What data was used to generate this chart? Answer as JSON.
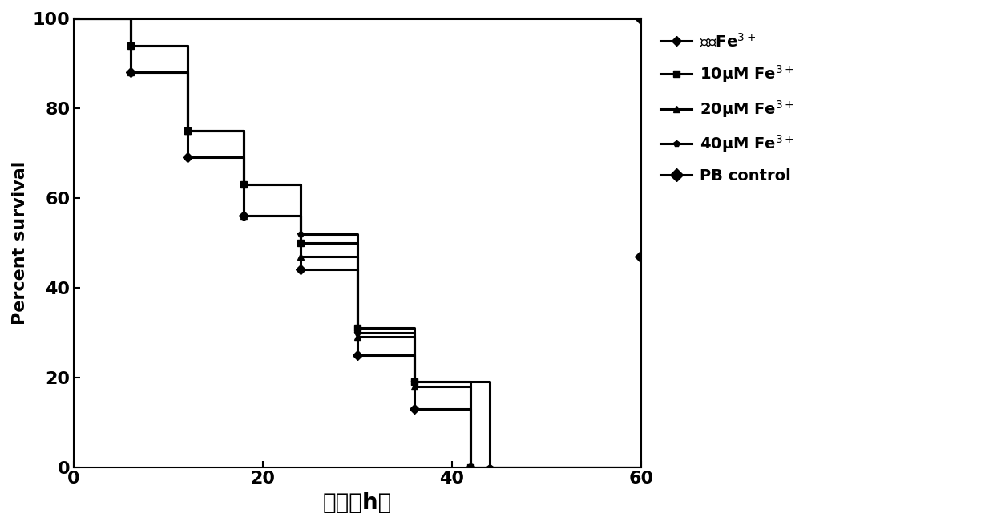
{
  "xlabel": "时间（h）",
  "ylabel": "Percent survival",
  "xlim": [
    0,
    60
  ],
  "ylim": [
    0,
    100
  ],
  "xticks": [
    0,
    20,
    40,
    60
  ],
  "yticks": [
    0,
    20,
    40,
    60,
    80,
    100
  ],
  "line_color": "#000000",
  "line_width": 2.2,
  "curves": {
    "no_fe": {
      "label": "不含Fe$^{3+}$",
      "marker": "D",
      "marker_size": 6,
      "x": [
        0,
        6,
        6,
        12,
        12,
        18,
        18,
        24,
        24,
        30,
        30,
        36,
        36,
        42,
        42,
        60
      ],
      "y": [
        100,
        100,
        88,
        88,
        69,
        69,
        56,
        56,
        44,
        44,
        25,
        25,
        13,
        13,
        0,
        0
      ]
    },
    "fe_10": {
      "label": "10μM Fe$^{3+}$",
      "marker": "s",
      "marker_size": 6,
      "x": [
        0,
        6,
        6,
        12,
        12,
        18,
        18,
        24,
        24,
        30,
        30,
        36,
        36,
        42,
        42,
        60
      ],
      "y": [
        100,
        100,
        94,
        94,
        75,
        75,
        63,
        63,
        50,
        50,
        31,
        31,
        19,
        19,
        0,
        0
      ]
    },
    "fe_20": {
      "label": "20μM Fe$^{3+}$",
      "marker": "^",
      "marker_size": 6,
      "x": [
        0,
        6,
        6,
        12,
        12,
        18,
        18,
        24,
        24,
        30,
        30,
        36,
        36,
        42,
        42,
        60
      ],
      "y": [
        100,
        100,
        88,
        88,
        75,
        75,
        56,
        56,
        47,
        47,
        29,
        29,
        18,
        18,
        0,
        0
      ]
    },
    "fe_40": {
      "label": "40μM Fe$^{3+}$",
      "marker": "p",
      "marker_size": 6,
      "x": [
        0,
        6,
        6,
        12,
        12,
        18,
        18,
        24,
        24,
        30,
        30,
        36,
        36,
        44,
        44,
        60
      ],
      "y": [
        100,
        100,
        94,
        94,
        75,
        75,
        63,
        63,
        52,
        52,
        30,
        30,
        19,
        19,
        0,
        0
      ]
    },
    "pb_control": {
      "label": "PB control",
      "marker": "D",
      "marker_size": 8,
      "x": [
        0,
        60
      ],
      "y": [
        100,
        100
      ]
    }
  },
  "pb_end_x": 60,
  "pb_end_y": 47,
  "xlabel_fontsize": 20,
  "ylabel_fontsize": 16,
  "tick_fontsize": 16,
  "legend_fontsize": 14,
  "background_color": "#ffffff"
}
